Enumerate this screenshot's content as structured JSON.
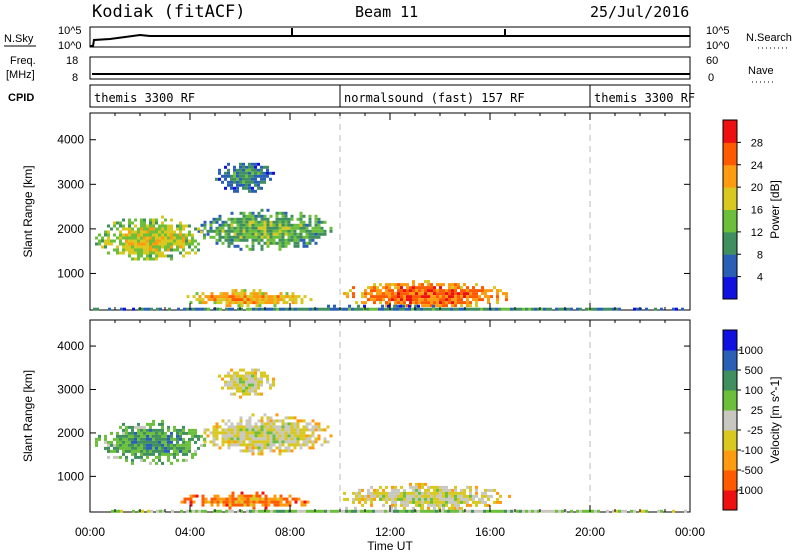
{
  "header": {
    "station": "Kodiak (fitACF)",
    "beam": "Beam 11",
    "date": "25/Jul/2016"
  },
  "left_labels": {
    "nsky": "N.Sky",
    "freq": "Freq.",
    "freq_unit": "[MHz]",
    "cpid": "CPID"
  },
  "right_labels": {
    "nsearch": "N.Search",
    "nave": "Nave"
  },
  "noise_panel": {
    "left_ticks": [
      "10^5",
      "10^0"
    ],
    "right_ticks": [
      "10^5",
      "10^0"
    ]
  },
  "freq_panel": {
    "left_ticks": [
      "18",
      "8"
    ],
    "right_ticks": [
      "60",
      "0"
    ]
  },
  "cpid_segments": [
    {
      "label": "themis 3300 RF",
      "start_hour": 0,
      "end_hour": 10
    },
    {
      "label": "normalsound (fast) 157 RF",
      "start_hour": 10,
      "end_hour": 20
    },
    {
      "label": "themis 3300 RF",
      "start_hour": 20,
      "end_hour": 24
    }
  ],
  "xaxis": {
    "label": "Time UT",
    "ticks": [
      "00:00",
      "04:00",
      "08:00",
      "12:00",
      "16:00",
      "20:00",
      "00:00"
    ]
  },
  "colors": {
    "power_scale": [
      "#1010e0",
      "#2a5fb8",
      "#3f8f5f",
      "#6bbf3a",
      "#d8c820",
      "#ff9b10",
      "#ff5a00",
      "#ee1010"
    ],
    "velocity_scale": [
      "#ee1010",
      "#ff5a00",
      "#ff9b10",
      "#d8c820",
      "#c8c8c0",
      "#6bbf3a",
      "#3f8f5f",
      "#2a5fb8",
      "#1010e0"
    ]
  },
  "chart_data": [
    {
      "type": "heatmap",
      "panel": "power",
      "ylabel": "Slant Range [km]",
      "yticks": [
        "1000",
        "2000",
        "3000",
        "4000"
      ],
      "ylim": [
        180,
        4600
      ],
      "xlim": [
        0,
        24
      ],
      "colorbar": {
        "label": "Power [dB]",
        "ticks": [
          "4",
          "8",
          "12",
          "16",
          "20",
          "24",
          "28"
        ],
        "range": [
          0,
          32
        ]
      },
      "regions": [
        {
          "t0": 5.0,
          "t1": 7.3,
          "r0": 2850,
          "r1": 3550,
          "level": 2
        },
        {
          "t0": 4.3,
          "t1": 9.7,
          "r0": 1550,
          "r1": 2450,
          "level": 3
        },
        {
          "t0": 0.2,
          "t1": 4.6,
          "r0": 1300,
          "r1": 2300,
          "level": 4
        },
        {
          "t0": 3.5,
          "t1": 9.0,
          "r0": 300,
          "r1": 650,
          "level": 5
        },
        {
          "t0": 10.0,
          "t1": 16.8,
          "r0": 250,
          "r1": 850,
          "level": 6
        },
        {
          "t0": 0.0,
          "t1": 24.0,
          "r0": 180,
          "r1": 300,
          "level": 2
        }
      ]
    },
    {
      "type": "heatmap",
      "panel": "velocity",
      "ylabel": "Slant Range [km]",
      "yticks": [
        "1000",
        "2000",
        "3000",
        "4000"
      ],
      "ylim": [
        180,
        4600
      ],
      "xlim": [
        0,
        24
      ],
      "colorbar": {
        "label": "Velocity [m s^-1]",
        "ticks": [
          "1000",
          "500",
          "100",
          "25",
          "-25",
          "-100",
          "-500",
          "-1000"
        ],
        "range": [
          -1200,
          1200
        ]
      },
      "regions": [
        {
          "t0": 5.0,
          "t1": 7.3,
          "r0": 2850,
          "r1": 3550,
          "level": 4
        },
        {
          "t0": 4.3,
          "t1": 9.7,
          "r0": 1550,
          "r1": 2450,
          "level": 4
        },
        {
          "t0": 0.2,
          "t1": 4.6,
          "r0": 1300,
          "r1": 2300,
          "level": 6
        },
        {
          "t0": 3.5,
          "t1": 9.0,
          "r0": 300,
          "r1": 650,
          "level": 2
        },
        {
          "t0": 10.0,
          "t1": 16.8,
          "r0": 250,
          "r1": 850,
          "level": 4
        },
        {
          "t0": 0.0,
          "t1": 24.0,
          "r0": 180,
          "r1": 300,
          "level": 5
        }
      ]
    }
  ]
}
